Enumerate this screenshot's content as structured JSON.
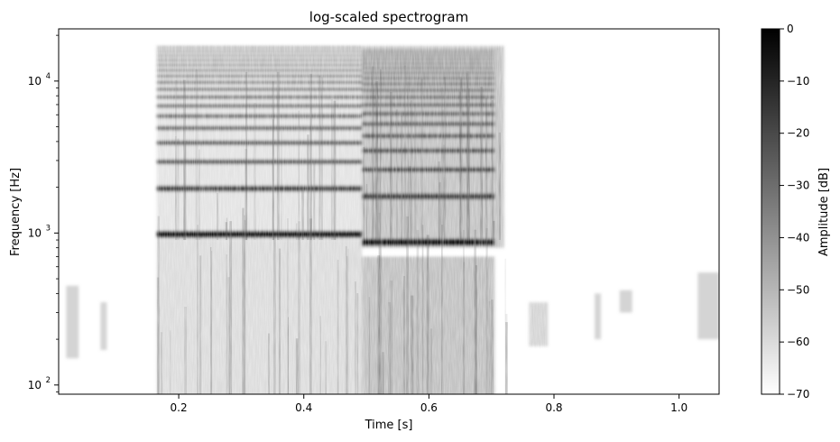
{
  "chart_data": {
    "type": "heatmap",
    "title": "log-scaled spectrogram",
    "xlabel": "Time [s]",
    "ylabel": "Frequency [Hz]",
    "x_scale": "linear",
    "y_scale": "log",
    "xlim": [
      0.008,
      1.064
    ],
    "ylim": [
      87,
      22050
    ],
    "x_ticks": [
      {
        "value": 0.2,
        "label": "0.2"
      },
      {
        "value": 0.4,
        "label": "0.4"
      },
      {
        "value": 0.6,
        "label": "0.6"
      },
      {
        "value": 0.8,
        "label": "0.8"
      },
      {
        "value": 1.0,
        "label": "1.0"
      }
    ],
    "y_ticks": [
      {
        "value": 100,
        "base": "10",
        "exp": "2"
      },
      {
        "value": 1000,
        "base": "10",
        "exp": "3"
      },
      {
        "value": 10000,
        "base": "10",
        "exp": "4"
      }
    ],
    "colormap": "gray_r",
    "colorbar": {
      "label": "Amplitude [dB]",
      "range": [
        -70,
        0
      ],
      "ticks": [
        "0",
        "−10",
        "−20",
        "−30",
        "−40",
        "−50",
        "−60",
        "−70"
      ]
    },
    "harmonic_segments": [
      {
        "t_start": 0.165,
        "t_end": 0.493,
        "fundamental_hz": 980
      },
      {
        "t_start": 0.493,
        "t_end": 0.705,
        "fundamental_hz": 870
      }
    ],
    "grid": false
  }
}
